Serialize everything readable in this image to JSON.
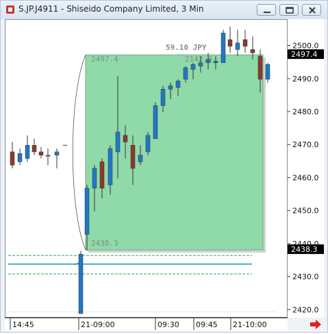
{
  "window": {
    "title": "S.JP.J4911 - Shiseido Company Limited, 3 Min",
    "controls": {
      "minimize": "minimize-icon",
      "restore": "restore-icon",
      "close": "close-icon"
    }
  },
  "chart_data": {
    "type": "candlestick",
    "title": "S.JP.J4911 - Shiseido Company Limited, 3 Min",
    "y_axis": {
      "range": [
        2418,
        2508
      ],
      "ticks": [
        2500.0,
        2490.0,
        2480.0,
        2470.0,
        2460.0,
        2450.0,
        2440.0,
        2430.0,
        2420.0
      ],
      "tick_labels": [
        "2500.0",
        "2490.0",
        "2480.0",
        "2470.0",
        "2460.0",
        "2450.0",
        "2440.0",
        "2430.0",
        "2420.0"
      ],
      "price_tags": [
        {
          "label": "2497.4",
          "value": 2497.4,
          "color": "#000000",
          "text_color": "#ffffff"
        },
        {
          "label": "2438.3",
          "value": 2438.3,
          "color": "#000000",
          "text_color": "#ffffff"
        }
      ]
    },
    "x_axis": {
      "labels": [
        "14:45",
        "21-09:00",
        "09:30",
        "09:45",
        "21-10:00"
      ]
    },
    "candles": [
      {
        "o": 2468.0,
        "h": 2471.0,
        "l": 2463.0,
        "c": 2464.0
      },
      {
        "o": 2465.0,
        "h": 2469.0,
        "l": 2464.0,
        "c": 2467.5
      },
      {
        "o": 2466.0,
        "h": 2473.0,
        "l": 2465.0,
        "c": 2470.0
      },
      {
        "o": 2470.0,
        "h": 2472.0,
        "l": 2467.0,
        "c": 2468.0
      },
      {
        "o": 2468.0,
        "h": 2469.5,
        "l": 2466.0,
        "c": 2467.0
      },
      {
        "o": 2467.0,
        "h": 2469.0,
        "l": 2464.0,
        "c": 2467.0
      },
      {
        "o": 2467.0,
        "h": 2469.0,
        "l": 2463.0,
        "c": 2468.0
      },
      {
        "o": 2470.0,
        "h": 2470.0,
        "l": 2470.0,
        "c": 2470.0
      },
      {
        "o": 2419.0,
        "h": 2438.0,
        "l": 2419.0,
        "c": 2437.0
      },
      {
        "o": 2443.0,
        "h": 2458.0,
        "l": 2438.0,
        "c": 2457.0
      },
      {
        "o": 2457.0,
        "h": 2464.0,
        "l": 2450.0,
        "c": 2463.0
      },
      {
        "o": 2465.0,
        "h": 2466.0,
        "l": 2454.0,
        "c": 2457.0
      },
      {
        "o": 2458.0,
        "h": 2470.0,
        "l": 2455.0,
        "c": 2469.0
      },
      {
        "o": 2468.0,
        "h": 2491.0,
        "l": 2460.0,
        "c": 2474.0
      },
      {
        "o": 2473.0,
        "h": 2476.0,
        "l": 2466.0,
        "c": 2471.0
      },
      {
        "o": 2470.0,
        "h": 2473.0,
        "l": 2458.0,
        "c": 2463.0
      },
      {
        "o": 2465.0,
        "h": 2470.0,
        "l": 2464.0,
        "c": 2467.0
      },
      {
        "o": 2468.0,
        "h": 2474.0,
        "l": 2467.0,
        "c": 2473.0
      },
      {
        "o": 2472.0,
        "h": 2483.0,
        "l": 2472.0,
        "c": 2482.0
      },
      {
        "o": 2482.0,
        "h": 2488.0,
        "l": 2480.0,
        "c": 2487.0
      },
      {
        "o": 2487.0,
        "h": 2489.0,
        "l": 2484.0,
        "c": 2488.0
      },
      {
        "o": 2487.5,
        "h": 2490.0,
        "l": 2485.0,
        "c": 2489.5
      },
      {
        "o": 2490.0,
        "h": 2494.0,
        "l": 2489.0,
        "c": 2493.5
      },
      {
        "o": 2493.0,
        "h": 2495.0,
        "l": 2490.0,
        "c": 2494.5
      },
      {
        "o": 2494.0,
        "h": 2497.0,
        "l": 2492.0,
        "c": 2495.0
      },
      {
        "o": 2495.0,
        "h": 2498.0,
        "l": 2493.0,
        "c": 2496.0
      },
      {
        "o": 2495.0,
        "h": 2497.0,
        "l": 2493.0,
        "c": 2495.5
      },
      {
        "o": 2495.0,
        "h": 2505.0,
        "l": 2495.0,
        "c": 2504.0
      },
      {
        "o": 2502.0,
        "h": 2506.0,
        "l": 2498.0,
        "c": 2500.0
      },
      {
        "o": 2499.0,
        "h": 2505.0,
        "l": 2497.0,
        "c": 2501.0
      },
      {
        "o": 2502.0,
        "h": 2505.0,
        "l": 2498.0,
        "c": 2500.0
      },
      {
        "o": 2499.0,
        "h": 2503.0,
        "l": 2496.0,
        "c": 2498.0
      },
      {
        "o": 2497.0,
        "h": 2499.0,
        "l": 2486.0,
        "c": 2490.0
      },
      {
        "o": 2490.0,
        "h": 2495.0,
        "l": 2489.0,
        "c": 2494.5
      }
    ],
    "colors": {
      "up": "#1f78c8",
      "down": "#8b3a2a",
      "zone_fill": "#90d9a8",
      "zone_stroke": "#6faf86",
      "level_line": "#20a8a8",
      "level_dash": "#2eaa4a"
    },
    "measure": {
      "label": "59.10 JPY",
      "top_label": "2497.4",
      "bottom_label": "2438.3",
      "right_top_label": "2142.9",
      "top": 2497.4,
      "bottom": 2438.3
    },
    "levels": [
      {
        "value": 2436.6,
        "style": "dashed",
        "color": "#2eaa4a"
      },
      {
        "value": 2434.0,
        "style": "solid",
        "color": "#20a8a8"
      },
      {
        "value": 2431.0,
        "style": "dashed",
        "color": "#2eaa4a"
      }
    ],
    "grid": false
  },
  "nav": {
    "arrow_icon": "right-arrow-icon"
  }
}
